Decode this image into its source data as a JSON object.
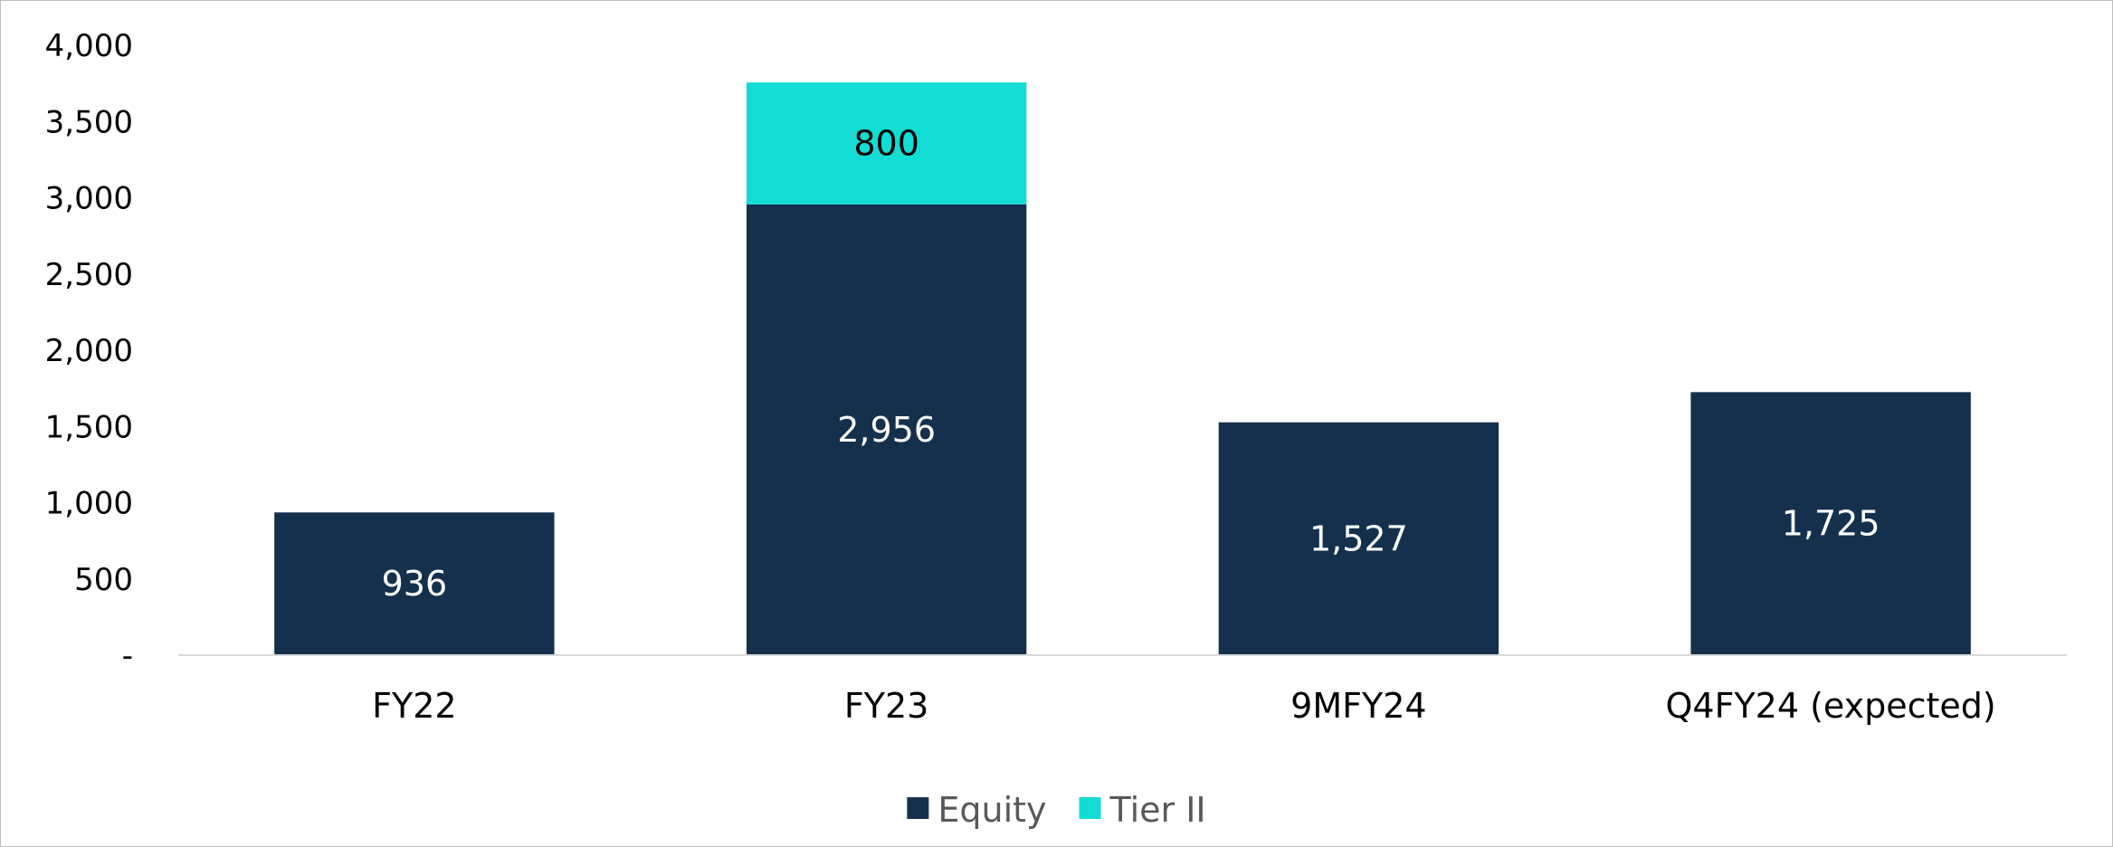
{
  "chart_data": {
    "type": "bar",
    "stacked": true,
    "categories": [
      "FY22",
      "FY23",
      "9MFY24",
      "Q4FY24 (expected)"
    ],
    "series": [
      {
        "name": "Equity",
        "values": [
          936,
          2956,
          1527,
          1725
        ],
        "labels": [
          "936",
          "2,956",
          "1,527",
          "1,725"
        ],
        "color": "#15304d",
        "label_color": "#ffffff"
      },
      {
        "name": "Tier II",
        "values": [
          0,
          800,
          0,
          0
        ],
        "labels": [
          "",
          "800",
          "",
          ""
        ],
        "color": "#12dcd4",
        "label_color": "#000000"
      }
    ],
    "ylim": [
      0,
      4000
    ],
    "yticks": [
      0,
      500,
      1000,
      1500,
      2000,
      2500,
      3000,
      3500,
      4000
    ],
    "ytick_labels": [
      "-",
      "500",
      "1,000",
      "1,500",
      "2,000",
      "2,500",
      "3,000",
      "3,500",
      "4,000"
    ],
    "grid": false,
    "legend": "bottom",
    "title": "",
    "xlabel": "",
    "ylabel": ""
  }
}
